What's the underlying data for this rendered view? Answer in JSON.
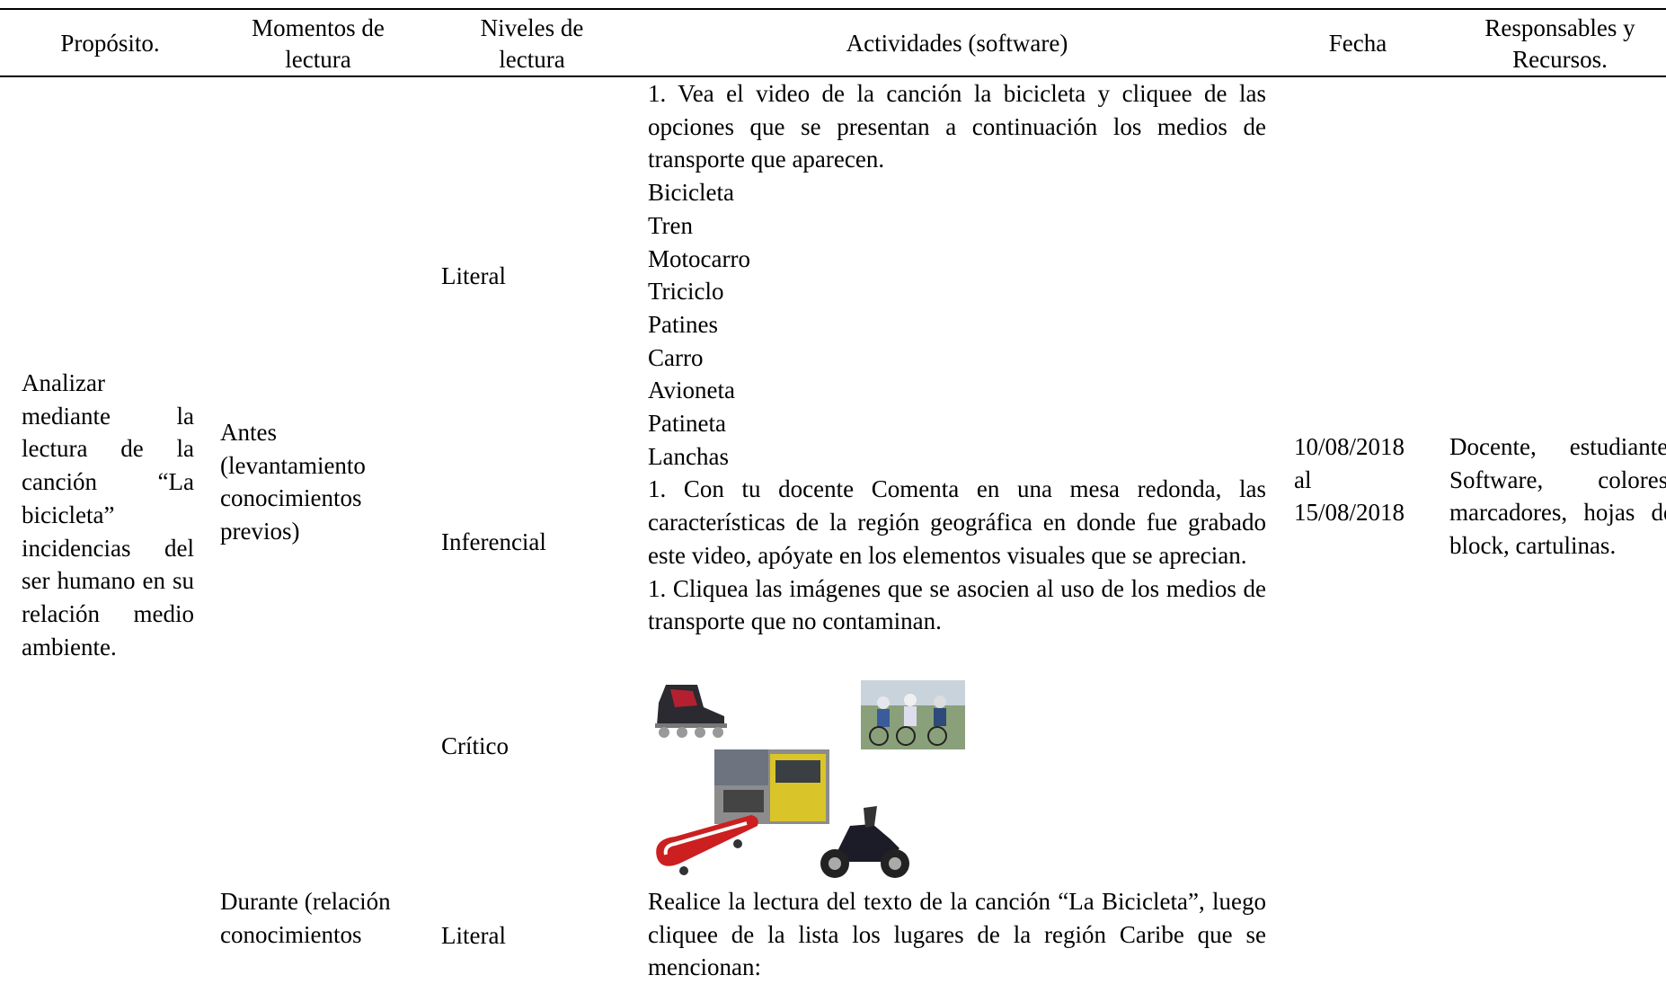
{
  "table": {
    "headers": [
      "Propósito.",
      "Momentos de lectura",
      "Niveles de lectura",
      "Actividades (software)",
      "Fecha",
      "Responsables y Recursos."
    ],
    "purpose": "Analizar mediante la lectura de la canción “La bicicleta” incidencias del ser humano en su relación medio ambiente.",
    "moments": [
      "Antes (levantamiento conocimientos previos)",
      "Durante (relación conocimientos"
    ],
    "levels": [
      "Literal",
      "Inferencial",
      "Crítico",
      "Literal"
    ],
    "activities": {
      "literal": "1. Vea el video de la canción la bicicleta y cliquee de las opciones que se presentan a continuación los medios de transporte que aparecen.",
      "options": [
        "Bicicleta",
        "Tren",
        "Motocarro",
        "Triciclo",
        "Patines",
        "Carro",
        "Avioneta",
        "Patineta",
        "Lanchas"
      ],
      "inferential": "1. Con tu docente Comenta en una mesa redonda, las características de la región geográfica en donde fue grabado este video, apóyate en los elementos visuales que se aprecian.",
      "critical": "1. Cliquea las imágenes que se asocien al uso de los medios de transporte que no contaminan.",
      "during": "Realice la lectura del texto de la canción “La Bicicleta”, luego cliquee de la lista los lugares de la región Caribe que se mencionan:"
    },
    "date": "10/08/2018 al 15/08/2018",
    "resources": "Docente, estudiante, Software, colores, marcadores, hojas de block, cartulinas."
  }
}
